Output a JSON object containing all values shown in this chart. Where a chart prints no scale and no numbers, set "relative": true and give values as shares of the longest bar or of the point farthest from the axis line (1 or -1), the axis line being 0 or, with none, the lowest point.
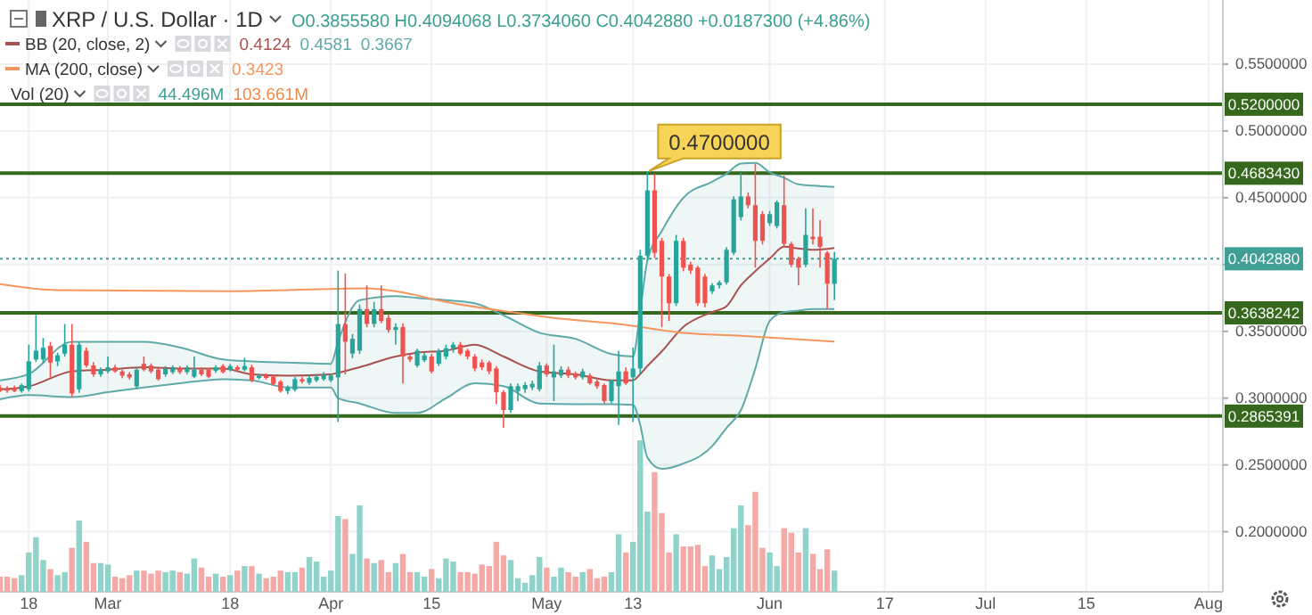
{
  "chart_data": [
    {
      "type": "candlestick",
      "title": "XRP / U.S. Dollar · 1D",
      "legend": "top left",
      "grid": true,
      "xlim": [
        "--02-14",
        "--08-03"
      ],
      "ylim": [
        0.155,
        0.598
      ],
      "xticks": [
        {
          "value": "--02-18",
          "label": "18"
        },
        {
          "value": "--03-01",
          "label": "Mar"
        },
        {
          "value": "--03-18",
          "label": "18"
        },
        {
          "value": "--04-01",
          "label": "Apr"
        },
        {
          "value": "--04-15",
          "label": "15"
        },
        {
          "value": "--05-01",
          "label": "May"
        },
        {
          "value": "--05-13",
          "label": "13"
        },
        {
          "value": "--06-01",
          "label": "Jun"
        },
        {
          "value": "--06-17",
          "label": "17"
        },
        {
          "value": "--07-01",
          "label": "Jul"
        },
        {
          "value": "--07-15",
          "label": "15"
        },
        {
          "value": "--08-01",
          "label": "Aug"
        }
      ],
      "yticks": [
        {
          "value": 0.55,
          "label": "0.5500000"
        },
        {
          "value": 0.5,
          "label": "0.5000000"
        },
        {
          "value": 0.45,
          "label": "0.4500000"
        },
        {
          "value": 0.4,
          "label": null
        },
        {
          "value": 0.35,
          "label": "0.3500000"
        },
        {
          "value": 0.3,
          "label": "0.3000000"
        },
        {
          "value": 0.25,
          "label": "0.2500000"
        },
        {
          "value": 0.2,
          "label": "0.2000000"
        }
      ],
      "x": [
        "--02-14",
        "--02-15",
        "--02-16",
        "--02-17",
        "--02-18",
        "--02-19",
        "--02-20",
        "--02-21",
        "--02-22",
        "--02-23",
        "--02-24",
        "--02-25",
        "--02-26",
        "--02-27",
        "--02-28",
        "--03-01",
        "--03-02",
        "--03-03",
        "--03-04",
        "--03-05",
        "--03-06",
        "--03-07",
        "--03-08",
        "--03-09",
        "--03-10",
        "--03-11",
        "--03-12",
        "--03-13",
        "--03-14",
        "--03-15",
        "--03-16",
        "--03-17",
        "--03-18",
        "--03-19",
        "--03-20",
        "--03-21",
        "--03-22",
        "--03-23",
        "--03-24",
        "--03-25",
        "--03-26",
        "--03-27",
        "--03-28",
        "--03-29",
        "--03-30",
        "--03-31",
        "--04-01",
        "--04-02",
        "--04-03",
        "--04-04",
        "--04-05",
        "--04-06",
        "--04-07",
        "--04-08",
        "--04-09",
        "--04-10",
        "--04-11",
        "--04-12",
        "--04-13",
        "--04-14",
        "--04-15",
        "--04-16",
        "--04-17",
        "--04-18",
        "--04-19",
        "--04-20",
        "--04-21",
        "--04-22",
        "--04-23",
        "--04-24",
        "--04-25",
        "--04-26",
        "--04-27",
        "--04-28",
        "--04-29",
        "--04-30",
        "--05-01",
        "--05-02",
        "--05-03",
        "--05-04",
        "--05-05",
        "--05-06",
        "--05-07",
        "--05-08",
        "--05-09",
        "--05-10",
        "--05-11",
        "--05-12",
        "--05-13",
        "--05-14",
        "--05-15",
        "--05-16",
        "--05-17",
        "--05-18",
        "--05-19",
        "--05-20",
        "--05-21",
        "--05-22",
        "--05-23",
        "--05-24",
        "--05-25",
        "--05-26",
        "--05-27",
        "--05-28",
        "--05-29",
        "--05-30",
        "--05-31",
        "--06-01",
        "--06-02",
        "--06-03",
        "--06-04",
        "--06-05",
        "--06-06",
        "--06-07",
        "--06-08",
        "--06-09",
        "--06-10"
      ],
      "ohlc": [
        [
          0.308,
          0.31,
          0.3045,
          0.3053
        ],
        [
          0.3066,
          0.309,
          0.304,
          0.3055
        ],
        [
          0.3075,
          0.3095,
          0.3045,
          0.3053
        ],
        [
          0.3053,
          0.311,
          0.304,
          0.3097
        ],
        [
          0.3066,
          0.34,
          0.305,
          0.3275
        ],
        [
          0.3289,
          0.3622,
          0.327,
          0.3355
        ],
        [
          0.3289,
          0.345,
          0.326,
          0.3377
        ],
        [
          0.3391,
          0.342,
          0.3155,
          0.3266
        ],
        [
          0.3275,
          0.334,
          0.324,
          0.332
        ],
        [
          0.3333,
          0.3555,
          0.331,
          0.34
        ],
        [
          0.34,
          0.3555,
          0.3008,
          0.3035
        ],
        [
          0.3066,
          0.342,
          0.304,
          0.34
        ],
        [
          0.3355,
          0.338,
          0.323,
          0.3244
        ],
        [
          0.3244,
          0.327,
          0.316,
          0.3178
        ],
        [
          0.3178,
          0.323,
          0.316,
          0.3213
        ],
        [
          0.32,
          0.3311,
          0.3185,
          0.3231
        ],
        [
          0.3231,
          0.325,
          0.319,
          0.32
        ],
        [
          0.32,
          0.3215,
          0.315,
          0.3168
        ],
        [
          0.3178,
          0.3195,
          0.314,
          0.3155
        ],
        [
          0.3088,
          0.323,
          0.307,
          0.3213
        ],
        [
          0.3257,
          0.3311,
          0.32,
          0.3213
        ],
        [
          0.3244,
          0.326,
          0.3185,
          0.32
        ],
        [
          0.3213,
          0.323,
          0.313,
          0.3142
        ],
        [
          0.3178,
          0.324,
          0.316,
          0.3222
        ],
        [
          0.3195,
          0.3245,
          0.318,
          0.3231
        ],
        [
          0.3222,
          0.324,
          0.318,
          0.3195
        ],
        [
          0.3195,
          0.3245,
          0.318,
          0.3231
        ],
        [
          0.316,
          0.3311,
          0.315,
          0.3213
        ],
        [
          0.3213,
          0.323,
          0.3165,
          0.3178
        ],
        [
          0.3213,
          0.3225,
          0.315,
          0.316
        ],
        [
          0.3204,
          0.3245,
          0.319,
          0.3231
        ],
        [
          0.324,
          0.3255,
          0.3185,
          0.3195
        ],
        [
          0.3213,
          0.3255,
          0.32,
          0.324
        ],
        [
          0.3231,
          0.3245,
          0.32,
          0.3213
        ],
        [
          0.3213,
          0.3302,
          0.32,
          0.324
        ],
        [
          0.3231,
          0.325,
          0.312,
          0.3133
        ],
        [
          0.3151,
          0.318,
          0.314,
          0.3168
        ],
        [
          0.3168,
          0.3185,
          0.314,
          0.3151
        ],
        [
          0.316,
          0.3175,
          0.3095,
          0.3106
        ],
        [
          0.3124,
          0.3135,
          0.304,
          0.3053
        ],
        [
          0.3053,
          0.3095,
          0.303,
          0.308
        ],
        [
          0.3062,
          0.316,
          0.305,
          0.3142
        ],
        [
          0.3142,
          0.316,
          0.311,
          0.3124
        ],
        [
          0.3115,
          0.3175,
          0.31,
          0.3151
        ],
        [
          0.3133,
          0.318,
          0.312,
          0.316
        ],
        [
          0.3142,
          0.3195,
          0.313,
          0.3178
        ],
        [
          0.3133,
          0.3185,
          0.312,
          0.3168
        ],
        [
          0.3155,
          0.3955,
          0.2822,
          0.3555
        ],
        [
          0.3555,
          0.3933,
          0.3178,
          0.3422
        ],
        [
          0.3333,
          0.348,
          0.33,
          0.3444
        ],
        [
          0.3355,
          0.37,
          0.333,
          0.3666
        ],
        [
          0.3666,
          0.3844,
          0.353,
          0.3555
        ],
        [
          0.3555,
          0.372,
          0.353,
          0.3666
        ],
        [
          0.3666,
          0.3844,
          0.356,
          0.3577
        ],
        [
          0.36,
          0.363,
          0.349,
          0.351
        ],
        [
          0.351,
          0.356,
          0.34,
          0.3532
        ],
        [
          0.3532,
          0.356,
          0.311,
          0.3311
        ],
        [
          0.3311,
          0.333,
          0.327,
          0.3289
        ],
        [
          0.3244,
          0.337,
          0.323,
          0.3355
        ],
        [
          0.3284,
          0.334,
          0.327,
          0.332
        ],
        [
          0.3311,
          0.333,
          0.3185,
          0.32
        ],
        [
          0.3257,
          0.337,
          0.324,
          0.3355
        ],
        [
          0.3311,
          0.34,
          0.329,
          0.3373
        ],
        [
          0.3373,
          0.342,
          0.334,
          0.34
        ],
        [
          0.34,
          0.342,
          0.332,
          0.3333
        ],
        [
          0.3355,
          0.337,
          0.329,
          0.3311
        ],
        [
          0.3311,
          0.333,
          0.32,
          0.3222
        ],
        [
          0.3266,
          0.329,
          0.321,
          0.3231
        ],
        [
          0.3266,
          0.328,
          0.318,
          0.32
        ],
        [
          0.3222,
          0.324,
          0.2955,
          0.3044
        ],
        [
          0.3044,
          0.306,
          0.2778,
          0.2911
        ],
        [
          0.2911,
          0.311,
          0.289,
          0.3089
        ],
        [
          0.3053,
          0.311,
          0.2978,
          0.3089
        ],
        [
          0.3067,
          0.312,
          0.304,
          0.3098
        ],
        [
          0.308,
          0.313,
          0.306,
          0.3107
        ],
        [
          0.3067,
          0.327,
          0.305,
          0.3244
        ],
        [
          0.3244,
          0.326,
          0.316,
          0.3178
        ],
        [
          0.3155,
          0.34,
          0.2978,
          0.32
        ],
        [
          0.3169,
          0.324,
          0.315,
          0.3213
        ],
        [
          0.3213,
          0.3235,
          0.315,
          0.3169
        ],
        [
          0.3186,
          0.32,
          0.314,
          0.3155
        ],
        [
          0.3155,
          0.322,
          0.314,
          0.32
        ],
        [
          0.3169,
          0.3185,
          0.31,
          0.3111
        ],
        [
          0.3124,
          0.314,
          0.307,
          0.3089
        ],
        [
          0.3098,
          0.311,
          0.296,
          0.2978
        ],
        [
          0.2978,
          0.314,
          0.296,
          0.3133
        ],
        [
          0.3089,
          0.3355,
          0.28,
          0.32
        ],
        [
          0.32,
          0.323,
          0.31,
          0.3111
        ],
        [
          0.3155,
          0.3378,
          0.2822,
          0.3222
        ],
        [
          0.3222,
          0.411,
          0.318,
          0.4066
        ],
        [
          0.4066,
          0.47,
          0.403,
          0.4555
        ],
        [
          0.4555,
          0.468,
          0.405,
          0.4088
        ],
        [
          0.4177,
          0.42,
          0.3533,
          0.391
        ],
        [
          0.391,
          0.393,
          0.3577,
          0.371
        ],
        [
          0.371,
          0.4222,
          0.369,
          0.4177
        ],
        [
          0.4177,
          0.42,
          0.395,
          0.3977
        ],
        [
          0.3999,
          0.402,
          0.393,
          0.3955
        ],
        [
          0.3977,
          0.399,
          0.369,
          0.371
        ],
        [
          0.391,
          0.393,
          0.368,
          0.371
        ],
        [
          0.3799,
          0.386,
          0.378,
          0.3844
        ],
        [
          0.3844,
          0.388,
          0.382,
          0.3866
        ],
        [
          0.3866,
          0.413,
          0.385,
          0.411
        ],
        [
          0.4088,
          0.451,
          0.407,
          0.4488
        ],
        [
          0.4355,
          0.4688,
          0.433,
          0.451
        ],
        [
          0.451,
          0.454,
          0.442,
          0.4444
        ],
        [
          0.4444,
          0.4755,
          0.3977,
          0.4177
        ],
        [
          0.4377,
          0.44,
          0.415,
          0.4177
        ],
        [
          0.431,
          0.44,
          0.429,
          0.4377
        ],
        [
          0.4288,
          0.448,
          0.427,
          0.4466
        ],
        [
          0.4444,
          0.4666,
          0.413,
          0.4155
        ],
        [
          0.4155,
          0.417,
          0.398,
          0.3999
        ],
        [
          0.4044,
          0.406,
          0.3844,
          0.3977
        ],
        [
          0.3999,
          0.4421,
          0.398,
          0.4222
        ],
        [
          0.4208,
          0.4421,
          0.415,
          0.419
        ],
        [
          0.4208,
          0.4333,
          0.3977,
          0.4133
        ],
        [
          0.4088,
          0.41,
          0.3666,
          0.3856
        ],
        [
          0.385558,
          0.4094068,
          0.373406,
          0.404288
        ]
      ],
      "colors": [
        "#ef5350",
        "#ef5350",
        "#ef5350",
        "#26a69a",
        "#26a69a",
        "#26a69a",
        "#26a69a",
        "#ef5350",
        "#26a69a",
        "#26a69a",
        "#ef5350",
        "#26a69a",
        "#ef5350",
        "#ef5350",
        "#26a69a",
        "#26a69a",
        "#ef5350",
        "#ef5350",
        "#ef5350",
        "#26a69a",
        "#ef5350",
        "#ef5350",
        "#ef5350",
        "#26a69a",
        "#26a69a",
        "#ef5350",
        "#26a69a",
        "#26a69a",
        "#ef5350",
        "#ef5350",
        "#26a69a",
        "#ef5350",
        "#26a69a",
        "#ef5350",
        "#26a69a",
        "#ef5350",
        "#26a69a",
        "#ef5350",
        "#ef5350",
        "#ef5350",
        "#26a69a",
        "#26a69a",
        "#ef5350",
        "#26a69a",
        "#26a69a",
        "#26a69a",
        "#26a69a",
        "#26a69a",
        "#ef5350",
        "#26a69a",
        "#26a69a",
        "#ef5350",
        "#26a69a",
        "#ef5350",
        "#ef5350",
        "#26a69a",
        "#ef5350",
        "#ef5350",
        "#26a69a",
        "#26a69a",
        "#ef5350",
        "#26a69a",
        "#26a69a",
        "#26a69a",
        "#ef5350",
        "#ef5350",
        "#ef5350",
        "#ef5350",
        "#ef5350",
        "#ef5350",
        "#ef5350",
        "#26a69a",
        "#26a69a",
        "#26a69a",
        "#26a69a",
        "#26a69a",
        "#ef5350",
        "#26a69a",
        "#26a69a",
        "#ef5350",
        "#ef5350",
        "#26a69a",
        "#ef5350",
        "#ef5350",
        "#ef5350",
        "#26a69a",
        "#26a69a",
        "#ef5350",
        "#26a69a",
        "#26a69a",
        "#26a69a",
        "#ef5350",
        "#ef5350",
        "#ef5350",
        "#26a69a",
        "#ef5350",
        "#ef5350",
        "#ef5350",
        "#ef5350",
        "#26a69a",
        "#26a69a",
        "#26a69a",
        "#26a69a",
        "#26a69a",
        "#ef5350",
        "#ef5350",
        "#ef5350",
        "#26a69a",
        "#26a69a",
        "#ef5350",
        "#ef5350",
        "#ef5350",
        "#26a69a",
        "#ef5350",
        "#ef5350",
        "#ef5350",
        "#26a69a"
      ],
      "series": [
        {
          "name": "BB (20, close, 2)",
          "type": "line",
          "color": "#a8524f",
          "x": [
            "--02-14",
            "--02-18",
            "--02-24",
            "--03-01",
            "--03-06",
            "--03-11",
            "--03-17",
            "--03-21",
            "--03-26",
            "--04-01",
            "--04-02",
            "--04-05",
            "--04-10",
            "--04-13",
            "--04-17",
            "--04-21",
            "--04-25",
            "--04-30",
            "--05-05",
            "--05-10",
            "--05-13",
            "--05-14",
            "--05-15",
            "--05-17",
            "--05-20",
            "--05-24",
            "--05-26",
            "--05-28",
            "--05-30",
            "--06-01",
            "--06-03",
            "--06-05",
            "--06-07",
            "--06-10"
          ],
          "values": [
            0.3066,
            0.3088,
            0.32,
            0.3213,
            0.3231,
            0.3222,
            0.3222,
            0.3178,
            0.3168,
            0.3178,
            0.319,
            0.3231,
            0.3311,
            0.334,
            0.3355,
            0.34,
            0.3311,
            0.32,
            0.3178,
            0.3133,
            0.3133,
            0.318,
            0.324,
            0.335,
            0.3533,
            0.3644,
            0.3688,
            0.3844,
            0.395,
            0.4044,
            0.4133,
            0.412,
            0.411,
            0.4124
          ]
        },
        {
          "type": "line",
          "color": "#5fa9a9",
          "x": [
            "--02-14",
            "--02-18",
            "--02-24",
            "--03-01",
            "--03-06",
            "--03-11",
            "--03-17",
            "--03-21",
            "--03-26",
            "--04-01",
            "--04-02",
            "--04-05",
            "--04-10",
            "--04-13",
            "--04-17",
            "--04-21",
            "--04-25",
            "--04-30",
            "--05-05",
            "--05-10",
            "--05-13",
            "--05-14",
            "--05-15",
            "--05-17",
            "--05-20",
            "--05-24",
            "--05-26",
            "--05-28",
            "--05-30",
            "--06-01",
            "--06-03",
            "--06-05",
            "--06-07",
            "--06-10"
          ],
          "values": [
            0.3133,
            0.318,
            0.3422,
            0.3422,
            0.3422,
            0.338,
            0.3289,
            0.3275,
            0.3266,
            0.3257,
            0.3422,
            0.3733,
            0.3764,
            0.375,
            0.3733,
            0.371,
            0.362,
            0.3489,
            0.3444,
            0.333,
            0.3311,
            0.365,
            0.403,
            0.425,
            0.45,
            0.462,
            0.468,
            0.4755,
            0.476,
            0.469,
            0.465,
            0.46,
            0.459,
            0.4581
          ]
        },
        {
          "type": "line",
          "color": "#5fa9a9",
          "x": [
            "--02-14",
            "--02-18",
            "--02-24",
            "--03-01",
            "--03-06",
            "--03-11",
            "--03-17",
            "--03-21",
            "--03-26",
            "--04-01",
            "--04-02",
            "--04-05",
            "--04-10",
            "--04-13",
            "--04-17",
            "--04-21",
            "--04-25",
            "--04-30",
            "--05-05",
            "--05-10",
            "--05-13",
            "--05-14",
            "--05-15",
            "--05-17",
            "--05-20",
            "--05-24",
            "--05-26",
            "--05-28",
            "--05-30",
            "--06-01",
            "--06-03",
            "--06-05",
            "--06-07",
            "--06-10"
          ],
          "values": [
            0.2991,
            0.3022,
            0.3008,
            0.3044,
            0.308,
            0.3111,
            0.3142,
            0.3133,
            0.308,
            0.308,
            0.3,
            0.296,
            0.2889,
            0.2889,
            0.2999,
            0.3111,
            0.3089,
            0.296,
            0.2955,
            0.2955,
            0.295,
            0.28,
            0.2555,
            0.247,
            0.251,
            0.264,
            0.2777,
            0.291,
            0.322,
            0.3577,
            0.3644,
            0.3655,
            0.3666,
            0.3667
          ]
        },
        {
          "name": "MA (200, close)",
          "type": "line",
          "color": "#f4965e",
          "x": [
            "--02-14",
            "--02-22",
            "--03-18",
            "--04-06",
            "--04-10",
            "--04-17",
            "--04-26",
            "--05-02",
            "--05-11",
            "--05-20",
            "--05-28",
            "--06-10"
          ],
          "values": [
            0.3853,
            0.3808,
            0.38,
            0.3822,
            0.38,
            0.372,
            0.3644,
            0.36,
            0.3555,
            0.3488,
            0.3466,
            0.3423
          ]
        }
      ],
      "ref_lines": [
        {
          "axis": "y",
          "value": 0.52,
          "label": "0.5200000",
          "color": "#35671c",
          "line_style": "solid"
        },
        {
          "axis": "y",
          "value": 0.468343,
          "label": "0.4683430",
          "color": "#35671c",
          "line_style": "solid"
        },
        {
          "axis": "y",
          "value": 0.3638242,
          "label": "0.3638242",
          "color": "#35671c",
          "line_style": "solid"
        },
        {
          "axis": "y",
          "value": 0.2865391,
          "label": "0.2865391",
          "color": "#35671c",
          "line_style": "solid"
        },
        {
          "axis": "y",
          "value": 0.404288,
          "label": "0.4042880",
          "color": "#3f9f95",
          "line_style": "dotted"
        }
      ],
      "annotations": [
        "O0.3855580 H0.4094068 L0.3734060 C0.4042880 +0.0187300 (+4.86%)",
        {
          "text": "0.4700000",
          "x": "--05-15",
          "y": 0.47
        },
        "0.4124",
        "0.4581",
        "0.3667",
        "0.3423"
      ]
    },
    {
      "type": "bar",
      "title": "Vol (20)",
      "relative": true,
      "xlim": [
        "--02-14",
        "--08-03"
      ],
      "x": [
        "--02-14",
        "--02-15",
        "--02-16",
        "--02-17",
        "--02-18",
        "--02-19",
        "--02-20",
        "--02-21",
        "--02-22",
        "--02-23",
        "--02-24",
        "--02-25",
        "--02-26",
        "--02-27",
        "--02-28",
        "--03-01",
        "--03-02",
        "--03-03",
        "--03-04",
        "--03-05",
        "--03-06",
        "--03-07",
        "--03-08",
        "--03-09",
        "--03-10",
        "--03-11",
        "--03-12",
        "--03-13",
        "--03-14",
        "--03-15",
        "--03-16",
        "--03-17",
        "--03-18",
        "--03-19",
        "--03-20",
        "--03-21",
        "--03-22",
        "--03-23",
        "--03-24",
        "--03-25",
        "--03-26",
        "--03-27",
        "--03-28",
        "--03-29",
        "--03-30",
        "--03-31",
        "--04-01",
        "--04-02",
        "--04-03",
        "--04-04",
        "--04-05",
        "--04-06",
        "--04-07",
        "--04-08",
        "--04-09",
        "--04-10",
        "--04-11",
        "--04-12",
        "--04-13",
        "--04-14",
        "--04-15",
        "--04-16",
        "--04-17",
        "--04-18",
        "--04-19",
        "--04-20",
        "--04-21",
        "--04-22",
        "--04-23",
        "--04-24",
        "--04-25",
        "--04-26",
        "--04-27",
        "--04-28",
        "--04-29",
        "--04-30",
        "--05-01",
        "--05-02",
        "--05-03",
        "--05-04",
        "--05-05",
        "--05-06",
        "--05-07",
        "--05-08",
        "--05-09",
        "--05-10",
        "--05-11",
        "--05-12",
        "--05-13",
        "--05-14",
        "--05-15",
        "--05-16",
        "--05-17",
        "--05-18",
        "--05-19",
        "--05-20",
        "--05-21",
        "--05-22",
        "--05-23",
        "--05-24",
        "--05-25",
        "--05-26",
        "--05-27",
        "--05-28",
        "--05-29",
        "--05-30",
        "--05-31",
        "--06-01",
        "--06-02",
        "--06-03",
        "--06-04",
        "--06-05",
        "--06-06",
        "--06-07",
        "--06-08",
        "--06-09",
        "--06-10"
      ],
      "values": [
        0.1,
        0.1,
        0.09,
        0.11,
        0.26,
        0.36,
        0.21,
        0.15,
        0.11,
        0.13,
        0.29,
        0.47,
        0.33,
        0.19,
        0.19,
        0.18,
        0.1,
        0.09,
        0.11,
        0.14,
        0.14,
        0.12,
        0.14,
        0.13,
        0.14,
        0.13,
        0.12,
        0.22,
        0.16,
        0.1,
        0.12,
        0.1,
        0.11,
        0.14,
        0.17,
        0.17,
        0.12,
        0.09,
        0.1,
        0.14,
        0.13,
        0.13,
        0.16,
        0.23,
        0.2,
        0.1,
        0.14,
        0.5,
        0.48,
        0.25,
        0.57,
        0.22,
        0.19,
        0.21,
        0.13,
        0.19,
        0.25,
        0.13,
        0.13,
        0.1,
        0.15,
        0.09,
        0.22,
        0.2,
        0.13,
        0.13,
        0.12,
        0.18,
        0.17,
        0.33,
        0.24,
        0.21,
        0.09,
        0.06,
        0.11,
        0.23,
        0.16,
        0.1,
        0.16,
        0.13,
        0.1,
        0.13,
        0.15,
        0.09,
        0.1,
        0.13,
        0.38,
        0.26,
        0.33,
        1,
        0.53,
        0.79,
        0.52,
        0.26,
        0.38,
        0.3,
        0.3,
        0.31,
        0.17,
        0.24,
        0.15,
        0.23,
        0.42,
        0.57,
        0.44,
        0.66,
        0.29,
        0.26,
        0.17,
        0.42,
        0.39,
        0.26,
        0.42,
        0.25,
        0.15,
        0.28,
        0.14
      ],
      "colors": [
        "#f4a9a7",
        "#f4a9a7",
        "#f4a9a7",
        "#8fd3cb",
        "#8fd3cb",
        "#8fd3cb",
        "#8fd3cb",
        "#f4a9a7",
        "#8fd3cb",
        "#8fd3cb",
        "#f4a9a7",
        "#8fd3cb",
        "#f4a9a7",
        "#f4a9a7",
        "#8fd3cb",
        "#8fd3cb",
        "#f4a9a7",
        "#f4a9a7",
        "#f4a9a7",
        "#8fd3cb",
        "#f4a9a7",
        "#f4a9a7",
        "#f4a9a7",
        "#8fd3cb",
        "#8fd3cb",
        "#f4a9a7",
        "#8fd3cb",
        "#8fd3cb",
        "#f4a9a7",
        "#f4a9a7",
        "#8fd3cb",
        "#f4a9a7",
        "#8fd3cb",
        "#f4a9a7",
        "#8fd3cb",
        "#f4a9a7",
        "#8fd3cb",
        "#f4a9a7",
        "#f4a9a7",
        "#f4a9a7",
        "#8fd3cb",
        "#8fd3cb",
        "#f4a9a7",
        "#8fd3cb",
        "#8fd3cb",
        "#8fd3cb",
        "#8fd3cb",
        "#8fd3cb",
        "#f4a9a7",
        "#8fd3cb",
        "#8fd3cb",
        "#f4a9a7",
        "#8fd3cb",
        "#f4a9a7",
        "#f4a9a7",
        "#8fd3cb",
        "#f4a9a7",
        "#f4a9a7",
        "#8fd3cb",
        "#8fd3cb",
        "#f4a9a7",
        "#8fd3cb",
        "#8fd3cb",
        "#8fd3cb",
        "#f4a9a7",
        "#f4a9a7",
        "#f4a9a7",
        "#f4a9a7",
        "#f4a9a7",
        "#f4a9a7",
        "#f4a9a7",
        "#8fd3cb",
        "#8fd3cb",
        "#8fd3cb",
        "#8fd3cb",
        "#8fd3cb",
        "#f4a9a7",
        "#8fd3cb",
        "#8fd3cb",
        "#f4a9a7",
        "#f4a9a7",
        "#8fd3cb",
        "#f4a9a7",
        "#f4a9a7",
        "#f4a9a7",
        "#8fd3cb",
        "#8fd3cb",
        "#f4a9a7",
        "#8fd3cb",
        "#8fd3cb",
        "#8fd3cb",
        "#f4a9a7",
        "#f4a9a7",
        "#f4a9a7",
        "#8fd3cb",
        "#f4a9a7",
        "#f4a9a7",
        "#f4a9a7",
        "#f4a9a7",
        "#8fd3cb",
        "#8fd3cb",
        "#8fd3cb",
        "#8fd3cb",
        "#8fd3cb",
        "#f4a9a7",
        "#f4a9a7",
        "#f4a9a7",
        "#8fd3cb",
        "#8fd3cb",
        "#f4a9a7",
        "#f4a9a7",
        "#f4a9a7",
        "#8fd3cb",
        "#f4a9a7",
        "#f4a9a7",
        "#f4a9a7",
        "#8fd3cb"
      ],
      "annotations": [
        "44.496M",
        "103.661M"
      ]
    }
  ]
}
